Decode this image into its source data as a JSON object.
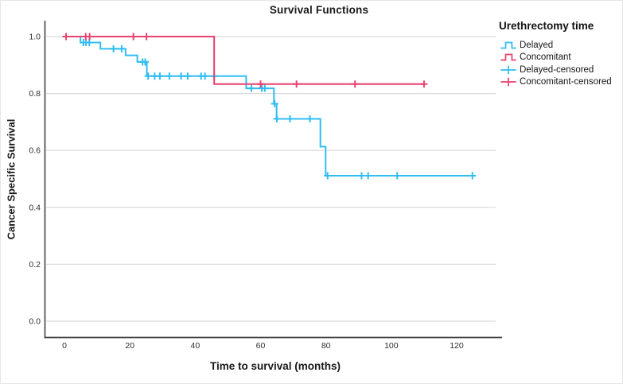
{
  "colors": {
    "delayed": "#30bdf2",
    "concomitant": "#e8426f",
    "gridline": "#d9d9d9",
    "axis_line": "#424242",
    "text": "#191919"
  },
  "legend": {
    "title": "Urethrectomy time",
    "items": [
      {
        "label": "Delayed",
        "glyph": "step-line",
        "color": "#30bdf2"
      },
      {
        "label": "Concomitant",
        "glyph": "step-line",
        "color": "#e8426f"
      },
      {
        "label": "Delayed-censored",
        "glyph": "censor-plus",
        "color": "#30bdf2"
      },
      {
        "label": "Concomitant-censored",
        "glyph": "censor-plus",
        "color": "#e8426f"
      }
    ]
  },
  "chart_data": {
    "type": "line",
    "subtype": "kaplan-meier-step",
    "title": "Survival Functions",
    "xlabel": "Time to survival (months)",
    "ylabel": "Cancer Specific Survival",
    "x_ticks": [
      0,
      20,
      40,
      60,
      80,
      100,
      120
    ],
    "y_ticks": [
      "0.0",
      "0.2",
      "0.4",
      "0.6",
      "0.8",
      "1.0"
    ],
    "xlim": [
      -6,
      132
    ],
    "ylim": [
      -0.05,
      1.05
    ],
    "grid": "horizontal",
    "legend_position": "right",
    "series": [
      {
        "name": "Delayed",
        "color": "#30bdf2",
        "steps": [
          [
            0,
            1.0
          ],
          [
            4.9,
            0.979
          ],
          [
            11.0,
            0.957
          ],
          [
            18.7,
            0.934
          ],
          [
            22.3,
            0.911
          ],
          [
            25.2,
            0.861
          ],
          [
            55.6,
            0.818
          ],
          [
            64.1,
            0.764
          ],
          [
            64.9,
            0.711
          ],
          [
            78.3,
            0.613
          ],
          [
            79.9,
            0.511
          ]
        ],
        "end_time": 124.8,
        "censored": [
          [
            5.8,
            0.979
          ],
          [
            6.6,
            0.979
          ],
          [
            7.6,
            0.979
          ],
          [
            15.0,
            0.957
          ],
          [
            17.5,
            0.957
          ],
          [
            23.9,
            0.911
          ],
          [
            24.7,
            0.911
          ],
          [
            25.6,
            0.861
          ],
          [
            27.6,
            0.861
          ],
          [
            29.2,
            0.861
          ],
          [
            32.1,
            0.861
          ],
          [
            35.7,
            0.861
          ],
          [
            37.7,
            0.861
          ],
          [
            41.8,
            0.861
          ],
          [
            43.0,
            0.861
          ],
          [
            45.8,
            0.861
          ],
          [
            57.2,
            0.818
          ],
          [
            60.4,
            0.818
          ],
          [
            61.3,
            0.818
          ],
          [
            64.3,
            0.764
          ],
          [
            65.0,
            0.711
          ],
          [
            69.0,
            0.711
          ],
          [
            75.1,
            0.711
          ],
          [
            80.5,
            0.511
          ],
          [
            90.9,
            0.511
          ],
          [
            92.9,
            0.511
          ],
          [
            101.8,
            0.511
          ],
          [
            124.8,
            0.511
          ]
        ]
      },
      {
        "name": "Concomitant",
        "color": "#e8426f",
        "steps": [
          [
            0,
            1.0
          ],
          [
            45.8,
            0.833
          ]
        ],
        "end_time": 110.0,
        "censored": [
          [
            0.5,
            1.0
          ],
          [
            6.5,
            1.0
          ],
          [
            7.7,
            1.0
          ],
          [
            21.1,
            1.0
          ],
          [
            25.1,
            1.0
          ],
          [
            60.0,
            0.833
          ],
          [
            71.0,
            0.833
          ],
          [
            88.9,
            0.833
          ],
          [
            110.0,
            0.833
          ]
        ]
      }
    ]
  }
}
